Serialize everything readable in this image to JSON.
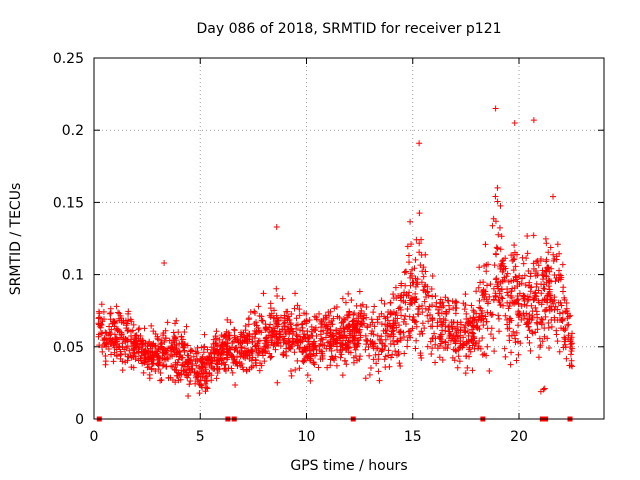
{
  "chart_data": {
    "type": "scatter",
    "title": "Day 086 of 2018, SRMTID for receiver p121",
    "xlabel": "GPS time / hours",
    "ylabel": "SRMTID / TECUs",
    "xlim": [
      0,
      24
    ],
    "ylim": [
      0,
      0.25
    ],
    "xticks": [
      0,
      5,
      10,
      15,
      20
    ],
    "xtick_labels": [
      "0",
      "5",
      "10",
      "15",
      "20"
    ],
    "yticks": [
      0,
      0.05,
      0.1,
      0.15,
      0.2,
      0.25
    ],
    "ytick_labels": [
      "0",
      "0.05",
      "0.1",
      "0.15",
      "0.2",
      "0.25"
    ],
    "grid": true,
    "marker": "+",
    "series_color": "#ff0000",
    "envelope_hours": [
      0.2,
      1.0,
      2.0,
      3.0,
      4.0,
      5.0,
      6.0,
      7.0,
      8.0,
      9.0,
      10.0,
      11.0,
      12.0,
      13.0,
      14.0,
      14.7,
      15.3,
      16.0,
      17.0,
      18.0,
      18.5,
      19.0,
      19.5,
      20.0,
      20.5,
      21.0,
      21.5,
      22.0,
      22.5
    ],
    "envelope_median_tecu": [
      0.06,
      0.06,
      0.05,
      0.045,
      0.045,
      0.035,
      0.045,
      0.05,
      0.055,
      0.06,
      0.055,
      0.055,
      0.06,
      0.055,
      0.06,
      0.075,
      0.09,
      0.065,
      0.06,
      0.06,
      0.09,
      0.1,
      0.075,
      0.085,
      0.08,
      0.08,
      0.09,
      0.08,
      0.045
    ],
    "envelope_spread_tecu": [
      0.02,
      0.02,
      0.015,
      0.015,
      0.02,
      0.015,
      0.015,
      0.02,
      0.022,
      0.022,
      0.02,
      0.02,
      0.022,
      0.022,
      0.025,
      0.04,
      0.045,
      0.025,
      0.025,
      0.025,
      0.045,
      0.05,
      0.04,
      0.04,
      0.035,
      0.045,
      0.04,
      0.03,
      0.015
    ],
    "max_points": [
      {
        "x": 18.9,
        "y": 0.215
      },
      {
        "x": 20.7,
        "y": 0.207
      },
      {
        "x": 19.8,
        "y": 0.205
      },
      {
        "x": 15.3,
        "y": 0.191
      },
      {
        "x": 21.6,
        "y": 0.154
      },
      {
        "x": 8.6,
        "y": 0.133
      },
      {
        "x": 3.3,
        "y": 0.108
      }
    ],
    "gap_markers_hours": [
      0.25,
      6.3,
      6.6,
      12.2,
      18.3,
      21.1,
      21.25,
      22.4
    ]
  }
}
